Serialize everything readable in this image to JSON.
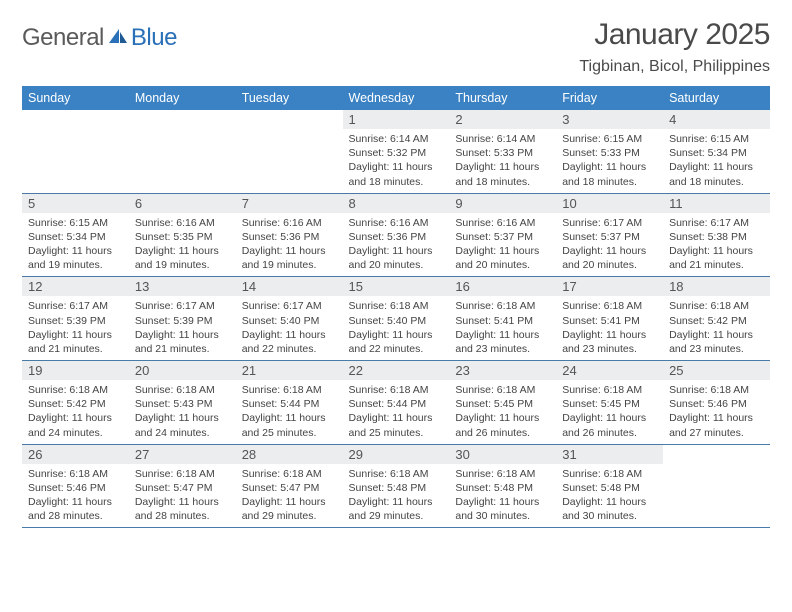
{
  "logo": {
    "general": "General",
    "blue": "Blue"
  },
  "title": {
    "month": "January 2025",
    "location": "Tigbinan, Bicol, Philippines"
  },
  "colors": {
    "header_bg": "#3a82c4",
    "header_fg": "#ffffff",
    "daynum_bg": "#ebedef",
    "rule": "#4a7aa8",
    "logo_blue": "#2a70b8",
    "text": "#444444"
  },
  "weekdays": [
    "Sunday",
    "Monday",
    "Tuesday",
    "Wednesday",
    "Thursday",
    "Friday",
    "Saturday"
  ],
  "weeks": [
    {
      "nums": [
        "",
        "",
        "",
        "1",
        "2",
        "3",
        "4"
      ],
      "cells": [
        "",
        "",
        "",
        "Sunrise: 6:14 AM\nSunset: 5:32 PM\nDaylight: 11 hours and 18 minutes.",
        "Sunrise: 6:14 AM\nSunset: 5:33 PM\nDaylight: 11 hours and 18 minutes.",
        "Sunrise: 6:15 AM\nSunset: 5:33 PM\nDaylight: 11 hours and 18 minutes.",
        "Sunrise: 6:15 AM\nSunset: 5:34 PM\nDaylight: 11 hours and 18 minutes."
      ]
    },
    {
      "nums": [
        "5",
        "6",
        "7",
        "8",
        "9",
        "10",
        "11"
      ],
      "cells": [
        "Sunrise: 6:15 AM\nSunset: 5:34 PM\nDaylight: 11 hours and 19 minutes.",
        "Sunrise: 6:16 AM\nSunset: 5:35 PM\nDaylight: 11 hours and 19 minutes.",
        "Sunrise: 6:16 AM\nSunset: 5:36 PM\nDaylight: 11 hours and 19 minutes.",
        "Sunrise: 6:16 AM\nSunset: 5:36 PM\nDaylight: 11 hours and 20 minutes.",
        "Sunrise: 6:16 AM\nSunset: 5:37 PM\nDaylight: 11 hours and 20 minutes.",
        "Sunrise: 6:17 AM\nSunset: 5:37 PM\nDaylight: 11 hours and 20 minutes.",
        "Sunrise: 6:17 AM\nSunset: 5:38 PM\nDaylight: 11 hours and 21 minutes."
      ]
    },
    {
      "nums": [
        "12",
        "13",
        "14",
        "15",
        "16",
        "17",
        "18"
      ],
      "cells": [
        "Sunrise: 6:17 AM\nSunset: 5:39 PM\nDaylight: 11 hours and 21 minutes.",
        "Sunrise: 6:17 AM\nSunset: 5:39 PM\nDaylight: 11 hours and 21 minutes.",
        "Sunrise: 6:17 AM\nSunset: 5:40 PM\nDaylight: 11 hours and 22 minutes.",
        "Sunrise: 6:18 AM\nSunset: 5:40 PM\nDaylight: 11 hours and 22 minutes.",
        "Sunrise: 6:18 AM\nSunset: 5:41 PM\nDaylight: 11 hours and 23 minutes.",
        "Sunrise: 6:18 AM\nSunset: 5:41 PM\nDaylight: 11 hours and 23 minutes.",
        "Sunrise: 6:18 AM\nSunset: 5:42 PM\nDaylight: 11 hours and 23 minutes."
      ]
    },
    {
      "nums": [
        "19",
        "20",
        "21",
        "22",
        "23",
        "24",
        "25"
      ],
      "cells": [
        "Sunrise: 6:18 AM\nSunset: 5:42 PM\nDaylight: 11 hours and 24 minutes.",
        "Sunrise: 6:18 AM\nSunset: 5:43 PM\nDaylight: 11 hours and 24 minutes.",
        "Sunrise: 6:18 AM\nSunset: 5:44 PM\nDaylight: 11 hours and 25 minutes.",
        "Sunrise: 6:18 AM\nSunset: 5:44 PM\nDaylight: 11 hours and 25 minutes.",
        "Sunrise: 6:18 AM\nSunset: 5:45 PM\nDaylight: 11 hours and 26 minutes.",
        "Sunrise: 6:18 AM\nSunset: 5:45 PM\nDaylight: 11 hours and 26 minutes.",
        "Sunrise: 6:18 AM\nSunset: 5:46 PM\nDaylight: 11 hours and 27 minutes."
      ]
    },
    {
      "nums": [
        "26",
        "27",
        "28",
        "29",
        "30",
        "31",
        ""
      ],
      "cells": [
        "Sunrise: 6:18 AM\nSunset: 5:46 PM\nDaylight: 11 hours and 28 minutes.",
        "Sunrise: 6:18 AM\nSunset: 5:47 PM\nDaylight: 11 hours and 28 minutes.",
        "Sunrise: 6:18 AM\nSunset: 5:47 PM\nDaylight: 11 hours and 29 minutes.",
        "Sunrise: 6:18 AM\nSunset: 5:48 PM\nDaylight: 11 hours and 29 minutes.",
        "Sunrise: 6:18 AM\nSunset: 5:48 PM\nDaylight: 11 hours and 30 minutes.",
        "Sunrise: 6:18 AM\nSunset: 5:48 PM\nDaylight: 11 hours and 30 minutes.",
        ""
      ]
    }
  ]
}
